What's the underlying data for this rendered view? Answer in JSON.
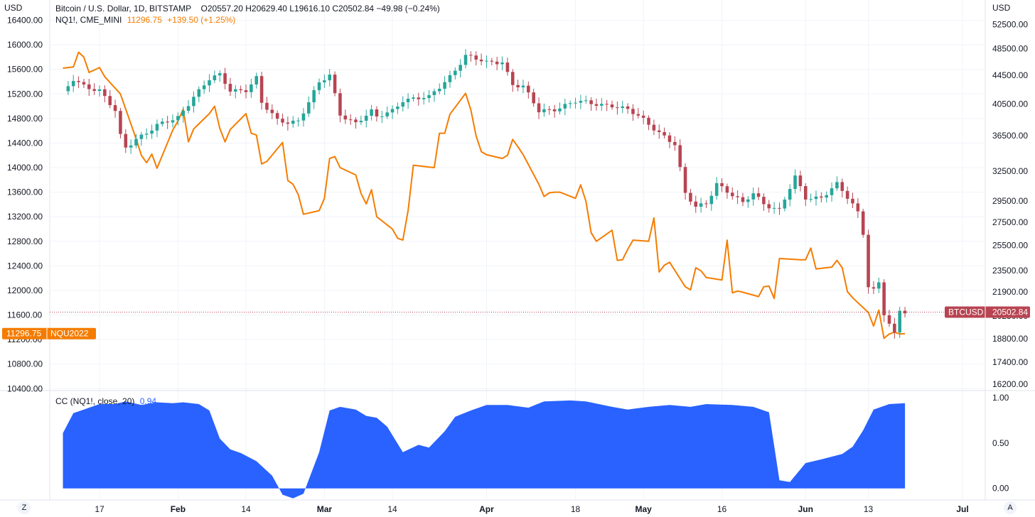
{
  "legend_main": {
    "symbol": "Bitcoin / U.S. Dollar, 1D, BITSTAMP",
    "ohlc": "O20557.20  H20629.40  L19616.10  C20502.84  −49.98 (−0.24%)"
  },
  "legend_compare": {
    "symbol": "NQ1!, CME_MINI",
    "value": "11296.75",
    "change": "+139.50 (+1.25%)"
  },
  "legend_indicator": {
    "name": "CC (NQ1!, close, 20)",
    "value": "0.94"
  },
  "axis_units": {
    "left": "USD",
    "right": "USD"
  },
  "price_tags": {
    "left_value": "11296.75",
    "left_symbol": "NQU2022",
    "right_symbol": "BTCUSD",
    "right_value": "20502.84"
  },
  "buttons": {
    "left": "Z",
    "right": "A"
  },
  "colors": {
    "up": "#26a69a",
    "down": "#b84452",
    "nq_line": "#f57c00",
    "cc_fill": "#2962ff",
    "grid": "#f0f3fa"
  },
  "chart_data": [
    {
      "type": "candlestick",
      "series_name": "Bitcoin / U.S. Dollar, 1D, BITSTAMP",
      "y_scale": "log",
      "y_ticks": [
        16200,
        17400,
        18800,
        20250,
        21900,
        23500,
        25500,
        27500,
        29500,
        32500,
        36500,
        40500,
        44500,
        48500,
        52500
      ],
      "y_tick_labels": [
        "16200.00",
        "17400.00",
        "18800.00",
        "20250.00",
        "21900.00",
        "23500.00",
        "25500.00",
        "27500.00",
        "29500.00",
        "32500.00",
        "36500.00",
        "40500.00",
        "44500.00",
        "48500.00",
        "52500.00"
      ],
      "y_range": [
        15900,
        55200
      ],
      "x_labels": [
        "17",
        "Feb",
        "14",
        "Mar",
        "14",
        "Apr",
        "18",
        "May",
        "16",
        "Jun",
        "13",
        "Jul"
      ],
      "x_label_dates": [
        "2022-01-17",
        "2022-02-01",
        "2022-02-14",
        "2022-03-01",
        "2022-03-14",
        "2022-04-01",
        "2022-04-18",
        "2022-05-01",
        "2022-05-16",
        "2022-06-01",
        "2022-06-13",
        "2022-07-01"
      ],
      "close_anchors": [
        [
          "2022-01-10",
          41800
        ],
        [
          "2022-01-12",
          43900
        ],
        [
          "2022-01-14",
          43100
        ],
        [
          "2022-01-17",
          42300
        ],
        [
          "2022-01-20",
          39500
        ],
        [
          "2022-01-21",
          36400
        ],
        [
          "2022-01-22",
          35100
        ],
        [
          "2022-01-24",
          36200
        ],
        [
          "2022-01-28",
          37700
        ],
        [
          "2022-01-31",
          38400
        ],
        [
          "2022-02-01",
          38700
        ],
        [
          "2022-02-04",
          41600
        ],
        [
          "2022-02-07",
          43900
        ],
        [
          "2022-02-09",
          44400
        ],
        [
          "2022-02-11",
          42300
        ],
        [
          "2022-02-14",
          42500
        ],
        [
          "2022-02-16",
          44100
        ],
        [
          "2022-02-17",
          40600
        ],
        [
          "2022-02-20",
          38300
        ],
        [
          "2022-02-22",
          38200
        ],
        [
          "2022-02-24",
          38400
        ],
        [
          "2022-02-28",
          43300
        ],
        [
          "2022-03-02",
          44400
        ],
        [
          "2022-03-04",
          39200
        ],
        [
          "2022-03-07",
          38100
        ],
        [
          "2022-03-10",
          39400
        ],
        [
          "2022-03-11",
          38700
        ],
        [
          "2022-03-14",
          39700
        ],
        [
          "2022-03-16",
          41100
        ],
        [
          "2022-03-21",
          41300
        ],
        [
          "2022-03-25",
          44400
        ],
        [
          "2022-03-28",
          47400
        ],
        [
          "2022-03-29",
          47100
        ],
        [
          "2022-04-01",
          46300
        ],
        [
          "2022-04-04",
          46600
        ],
        [
          "2022-04-06",
          43200
        ],
        [
          "2022-04-08",
          42800
        ],
        [
          "2022-04-11",
          39500
        ],
        [
          "2022-04-14",
          39900
        ],
        [
          "2022-04-18",
          40800
        ],
        [
          "2022-04-21",
          40500
        ],
        [
          "2022-04-25",
          40400
        ],
        [
          "2022-04-28",
          39700
        ],
        [
          "2022-05-01",
          38400
        ],
        [
          "2022-05-05",
          36500
        ],
        [
          "2022-05-07",
          35500
        ],
        [
          "2022-05-09",
          30100
        ],
        [
          "2022-05-11",
          28900
        ],
        [
          "2022-05-12",
          29100
        ],
        [
          "2022-05-13",
          29300
        ],
        [
          "2022-05-15",
          31300
        ],
        [
          "2022-05-17",
          30400
        ],
        [
          "2022-05-20",
          29200
        ],
        [
          "2022-05-22",
          30300
        ],
        [
          "2022-05-24",
          29300
        ],
        [
          "2022-05-27",
          28600
        ],
        [
          "2022-05-30",
          31800
        ],
        [
          "2022-06-01",
          29800
        ],
        [
          "2022-06-04",
          29900
        ],
        [
          "2022-06-07",
          31100
        ],
        [
          "2022-06-10",
          29100
        ],
        [
          "2022-06-11",
          28400
        ],
        [
          "2022-06-12",
          26600
        ],
        [
          "2022-06-13",
          22400
        ],
        [
          "2022-06-14",
          22100
        ],
        [
          "2022-06-15",
          22600
        ],
        [
          "2022-06-16",
          20400
        ],
        [
          "2022-06-18",
          19000
        ],
        [
          "2022-06-19",
          20550
        ],
        [
          "2022-06-20",
          20502
        ]
      ]
    },
    {
      "type": "line",
      "series_name": "NQ1!, CME_MINI",
      "y_ticks": [
        10400,
        10800,
        11200,
        11600,
        12000,
        12400,
        12800,
        13200,
        13600,
        14000,
        14400,
        14800,
        15200,
        15600,
        16000,
        16400
      ],
      "y_tick_labels": [
        "10400.00",
        "10800.00",
        "11200.00",
        "11600.00",
        "12000.00",
        "12400.00",
        "12800.00",
        "13200.00",
        "13600.00",
        "14000.00",
        "14400.00",
        "14800.00",
        "15200.00",
        "15600.00",
        "16000.00",
        "16400.00"
      ],
      "y_range": [
        10380,
        16580
      ],
      "points": [
        [
          "2022-01-10",
          15620
        ],
        [
          "2022-01-12",
          15640
        ],
        [
          "2022-01-13",
          15880
        ],
        [
          "2022-01-14",
          15800
        ],
        [
          "2022-01-15",
          15550
        ],
        [
          "2022-01-17",
          15630
        ],
        [
          "2022-01-18",
          15480
        ],
        [
          "2022-01-21",
          15200
        ],
        [
          "2022-01-24",
          14470
        ],
        [
          "2022-01-25",
          14200
        ],
        [
          "2022-01-26",
          14080
        ],
        [
          "2022-01-27",
          14220
        ],
        [
          "2022-01-28",
          13990
        ],
        [
          "2022-01-31",
          14610
        ],
        [
          "2022-02-01",
          14760
        ],
        [
          "2022-02-02",
          14950
        ],
        [
          "2022-02-03",
          14420
        ],
        [
          "2022-02-04",
          14630
        ],
        [
          "2022-02-07",
          14880
        ],
        [
          "2022-02-08",
          15000
        ],
        [
          "2022-02-09",
          14640
        ],
        [
          "2022-02-10",
          14420
        ],
        [
          "2022-02-11",
          14620
        ],
        [
          "2022-02-14",
          14880
        ],
        [
          "2022-02-15",
          14560
        ],
        [
          "2022-02-16",
          14530
        ],
        [
          "2022-02-17",
          14060
        ],
        [
          "2022-02-18",
          14100
        ],
        [
          "2022-02-21",
          14410
        ],
        [
          "2022-02-22",
          13790
        ],
        [
          "2022-02-23",
          13730
        ],
        [
          "2022-02-24",
          13560
        ],
        [
          "2022-02-25",
          13240
        ],
        [
          "2022-02-28",
          13300
        ],
        [
          "2022-03-01",
          13500
        ],
        [
          "2022-03-02",
          14150
        ],
        [
          "2022-03-03",
          14180
        ],
        [
          "2022-03-04",
          14000
        ],
        [
          "2022-03-07",
          13880
        ],
        [
          "2022-03-08",
          13580
        ],
        [
          "2022-03-09",
          13410
        ],
        [
          "2022-03-10",
          13640
        ],
        [
          "2022-03-11",
          13200
        ],
        [
          "2022-03-14",
          13000
        ],
        [
          "2022-03-15",
          12850
        ],
        [
          "2022-03-16",
          12820
        ],
        [
          "2022-03-17",
          13300
        ],
        [
          "2022-03-18",
          14040
        ],
        [
          "2022-03-21",
          14010
        ],
        [
          "2022-03-22",
          14000
        ],
        [
          "2022-03-23",
          14560
        ],
        [
          "2022-03-24",
          14560
        ],
        [
          "2022-03-25",
          14870
        ],
        [
          "2022-03-28",
          15210
        ],
        [
          "2022-03-29",
          14940
        ],
        [
          "2022-03-30",
          14520
        ],
        [
          "2022-03-31",
          14260
        ],
        [
          "2022-04-01",
          14210
        ],
        [
          "2022-04-04",
          14150
        ],
        [
          "2022-04-05",
          14200
        ],
        [
          "2022-04-06",
          14460
        ],
        [
          "2022-04-07",
          14340
        ],
        [
          "2022-04-08",
          14210
        ],
        [
          "2022-04-11",
          13730
        ],
        [
          "2022-04-12",
          13530
        ],
        [
          "2022-04-13",
          13590
        ],
        [
          "2022-04-14",
          13600
        ],
        [
          "2022-04-15",
          13600
        ],
        [
          "2022-04-18",
          13500
        ],
        [
          "2022-04-19",
          13720
        ],
        [
          "2022-04-20",
          13450
        ],
        [
          "2022-04-21",
          12940
        ],
        [
          "2022-04-22",
          12800
        ],
        [
          "2022-04-25",
          12980
        ],
        [
          "2022-04-26",
          12490
        ],
        [
          "2022-04-27",
          12500
        ],
        [
          "2022-04-28",
          12670
        ],
        [
          "2022-04-29",
          12820
        ],
        [
          "2022-05-02",
          12800
        ],
        [
          "2022-05-03",
          13180
        ],
        [
          "2022-05-04",
          12300
        ],
        [
          "2022-05-05",
          12410
        ],
        [
          "2022-05-06",
          12460
        ],
        [
          "2022-05-09",
          12060
        ],
        [
          "2022-05-10",
          12010
        ],
        [
          "2022-05-11",
          12370
        ],
        [
          "2022-05-12",
          12320
        ],
        [
          "2022-05-13",
          12210
        ],
        [
          "2022-05-16",
          12170
        ],
        [
          "2022-05-17",
          12820
        ],
        [
          "2022-05-18",
          11960
        ],
        [
          "2022-05-19",
          11990
        ],
        [
          "2022-05-20",
          11970
        ],
        [
          "2022-05-23",
          11900
        ],
        [
          "2022-05-24",
          12060
        ],
        [
          "2022-05-25",
          12070
        ],
        [
          "2022-05-26",
          11870
        ],
        [
          "2022-05-27",
          12520
        ],
        [
          "2022-05-31",
          12500
        ],
        [
          "2022-06-01",
          12500
        ],
        [
          "2022-06-02",
          12690
        ],
        [
          "2022-06-03",
          12350
        ],
        [
          "2022-06-06",
          12380
        ],
        [
          "2022-06-07",
          12490
        ],
        [
          "2022-06-08",
          12370
        ],
        [
          "2022-06-09",
          11980
        ],
        [
          "2022-06-10",
          11880
        ],
        [
          "2022-06-13",
          11640
        ],
        [
          "2022-06-14",
          11420
        ],
        [
          "2022-06-15",
          11680
        ],
        [
          "2022-06-16",
          11220
        ],
        [
          "2022-06-17",
          11290
        ],
        [
          "2022-06-18",
          11320
        ],
        [
          "2022-06-19",
          11290
        ],
        [
          "2022-06-20",
          11297
        ]
      ]
    },
    {
      "type": "area",
      "series_name": "CC (NQ1!, close, 20)",
      "y_ticks": [
        0,
        0.5,
        1
      ],
      "y_tick_labels": [
        "0.00",
        "0.50",
        "1.00"
      ],
      "y_range": [
        -0.12,
        1.04
      ],
      "points": [
        [
          "2022-01-10",
          0.61
        ],
        [
          "2022-01-12",
          0.83
        ],
        [
          "2022-01-14",
          0.87
        ],
        [
          "2022-01-17",
          0.93
        ],
        [
          "2022-01-20",
          0.93
        ],
        [
          "2022-01-22",
          0.96
        ],
        [
          "2022-01-25",
          0.92
        ],
        [
          "2022-01-28",
          0.95
        ],
        [
          "2022-01-31",
          0.94
        ],
        [
          "2022-02-02",
          0.95
        ],
        [
          "2022-02-05",
          0.93
        ],
        [
          "2022-02-07",
          0.86
        ],
        [
          "2022-02-09",
          0.55
        ],
        [
          "2022-02-11",
          0.43
        ],
        [
          "2022-02-13",
          0.39
        ],
        [
          "2022-02-16",
          0.3
        ],
        [
          "2022-02-19",
          0.14
        ],
        [
          "2022-02-21",
          -0.07
        ],
        [
          "2022-02-23",
          -0.11
        ],
        [
          "2022-02-25",
          -0.06
        ],
        [
          "2022-02-28",
          0.4
        ],
        [
          "2022-03-02",
          0.86
        ],
        [
          "2022-03-04",
          0.9
        ],
        [
          "2022-03-07",
          0.87
        ],
        [
          "2022-03-09",
          0.8
        ],
        [
          "2022-03-11",
          0.78
        ],
        [
          "2022-03-13",
          0.68
        ],
        [
          "2022-03-16",
          0.4
        ],
        [
          "2022-03-19",
          0.48
        ],
        [
          "2022-03-21",
          0.45
        ],
        [
          "2022-03-24",
          0.63
        ],
        [
          "2022-03-26",
          0.79
        ],
        [
          "2022-03-29",
          0.86
        ],
        [
          "2022-04-01",
          0.92
        ],
        [
          "2022-04-05",
          0.92
        ],
        [
          "2022-04-09",
          0.89
        ],
        [
          "2022-04-12",
          0.96
        ],
        [
          "2022-04-17",
          0.97
        ],
        [
          "2022-04-20",
          0.96
        ],
        [
          "2022-04-25",
          0.9
        ],
        [
          "2022-04-28",
          0.87
        ],
        [
          "2022-05-02",
          0.9
        ],
        [
          "2022-05-06",
          0.92
        ],
        [
          "2022-05-10",
          0.9
        ],
        [
          "2022-05-13",
          0.93
        ],
        [
          "2022-05-18",
          0.92
        ],
        [
          "2022-05-22",
          0.9
        ],
        [
          "2022-05-25",
          0.84
        ],
        [
          "2022-05-27",
          0.09
        ],
        [
          "2022-05-29",
          0.07
        ],
        [
          "2022-06-01",
          0.28
        ],
        [
          "2022-06-04",
          0.32
        ],
        [
          "2022-06-08",
          0.38
        ],
        [
          "2022-06-10",
          0.46
        ],
        [
          "2022-06-12",
          0.64
        ],
        [
          "2022-06-14",
          0.87
        ],
        [
          "2022-06-17",
          0.93
        ],
        [
          "2022-06-20",
          0.94
        ]
      ]
    }
  ]
}
